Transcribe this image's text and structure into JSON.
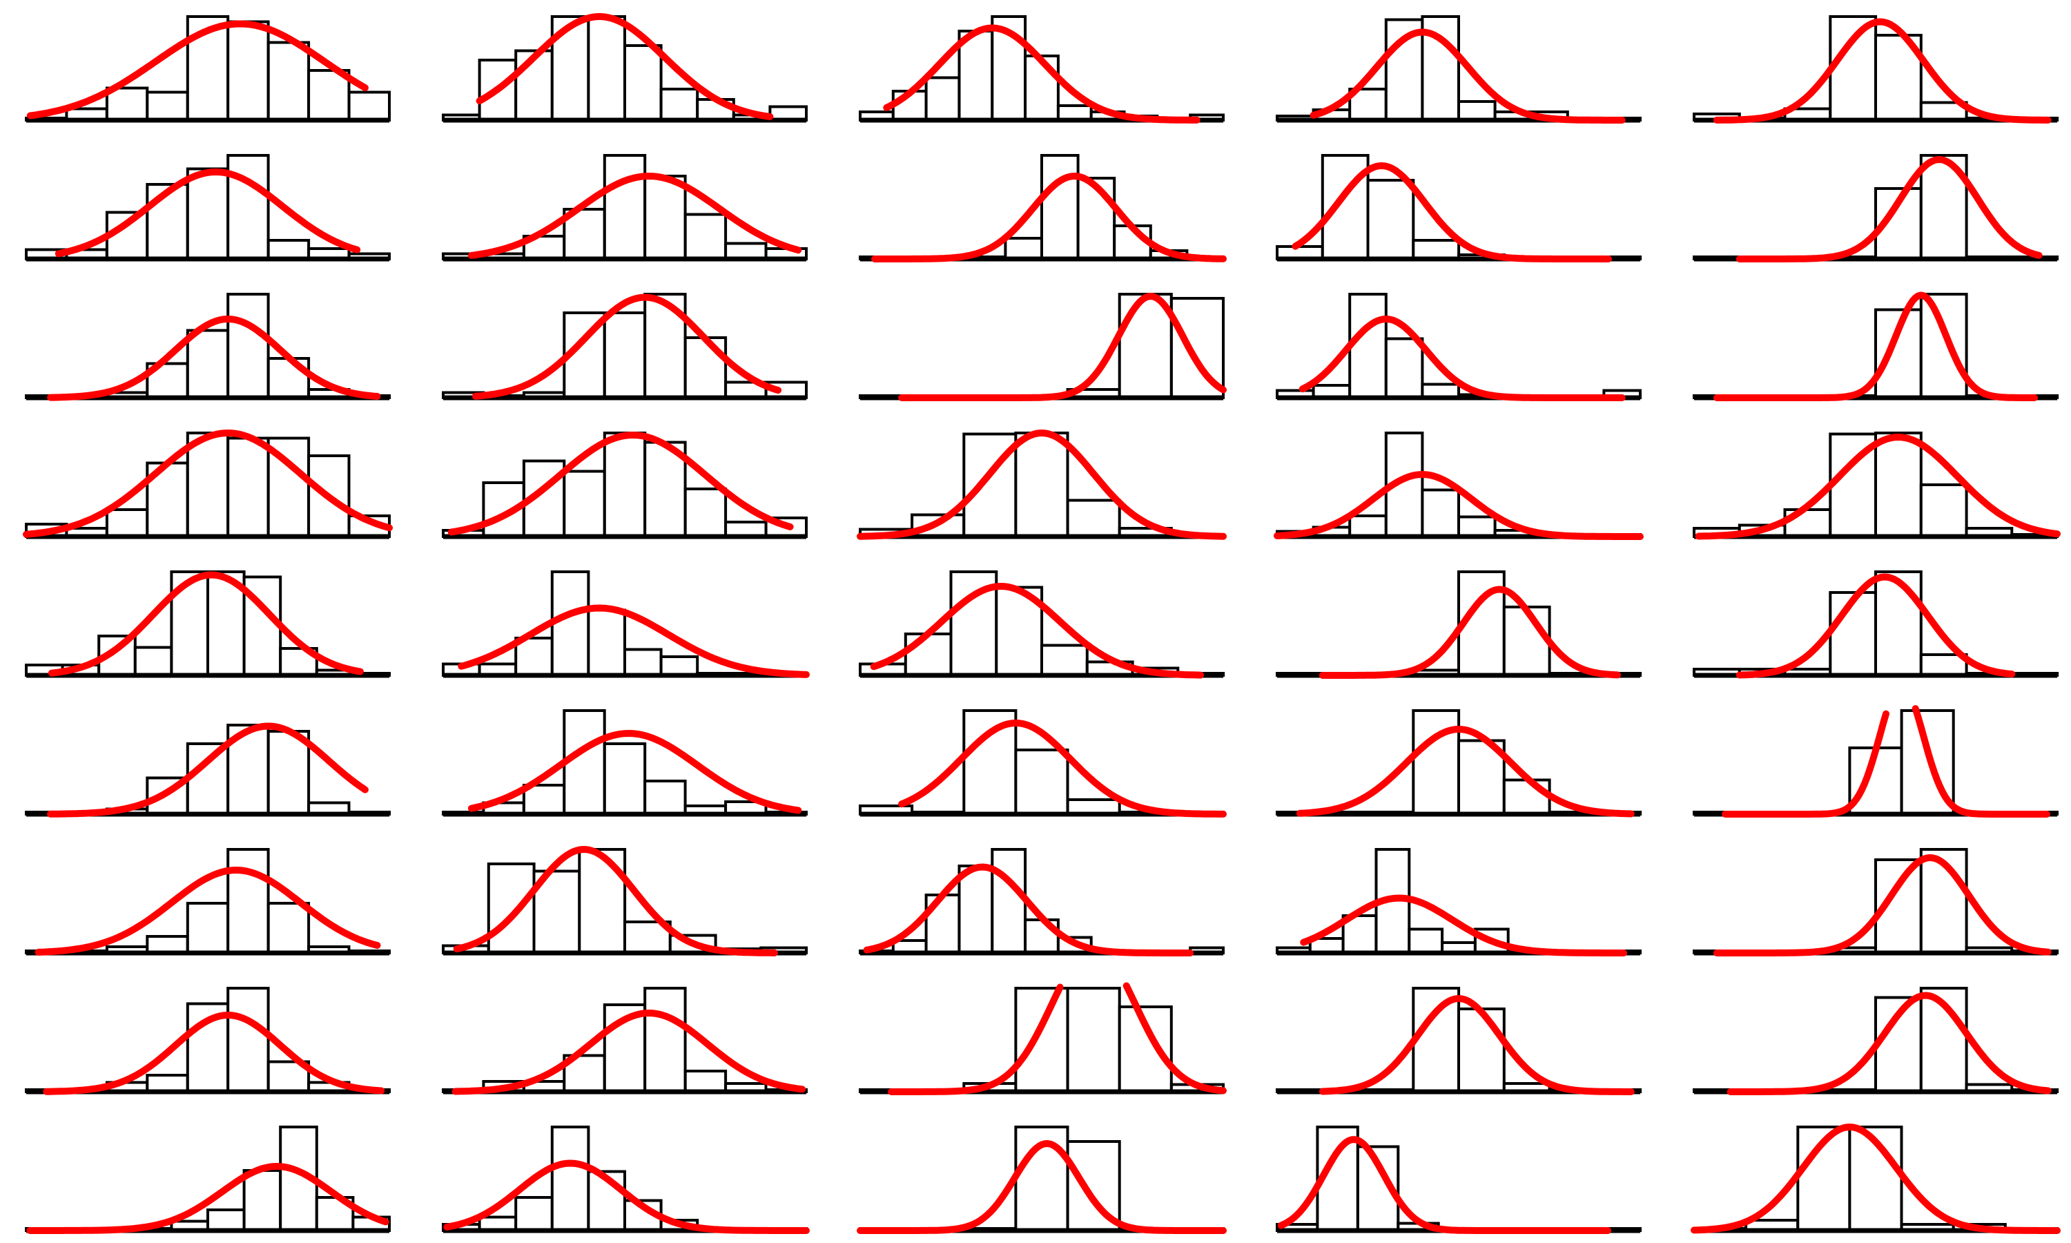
{
  "chart_data": {
    "type": "histogram-grid",
    "layout": {
      "rows": 9,
      "cols": 5
    },
    "colors": {
      "bar_fill": "#ffffff",
      "bar_edge": "#000000",
      "fit_curve": "#ff0000"
    },
    "grid": false,
    "axes_visible": false,
    "title": "",
    "panels": [
      {
        "name": "r1c1",
        "bins": 9,
        "ymax": 1.0,
        "counts": [
          0.02,
          0.11,
          0.31,
          0.27,
          1.0,
          0.95,
          0.75,
          0.48,
          0.27
        ],
        "fit": {
          "mean": 5.3,
          "sd": 2.1,
          "peak": 0.93
        },
        "fit_range": [
          0.1,
          8.4
        ]
      },
      {
        "name": "r1c2",
        "bins": 10,
        "ymax": 1.0,
        "counts": [
          0.05,
          0.58,
          0.67,
          1.0,
          1.0,
          0.72,
          0.3,
          0.2,
          0.05,
          0.13
        ],
        "fit": {
          "mean": 4.3,
          "sd": 1.8,
          "peak": 1.0
        },
        "fit_range": [
          1.0,
          9.0
        ]
      },
      {
        "name": "r1c3",
        "bins": 11,
        "ymax": 1.0,
        "counts": [
          0.08,
          0.28,
          0.41,
          0.86,
          1.0,
          0.62,
          0.14,
          0.08,
          0.04,
          0.02,
          0.05
        ],
        "fit": {
          "mean": 4.0,
          "sd": 1.6,
          "peak": 0.89
        },
        "fit_range": [
          0.8,
          10.2
        ]
      },
      {
        "name": "r1c4",
        "bins": 10,
        "ymax": 1.0,
        "counts": [
          0.04,
          0.1,
          0.3,
          0.97,
          1.0,
          0.18,
          0.08,
          0.08,
          0.02,
          0.02
        ],
        "fit": {
          "mean": 4.0,
          "sd": 1.25,
          "peak": 0.85
        },
        "fit_range": [
          1.0,
          9.5
        ]
      },
      {
        "name": "r1c5",
        "bins": 8,
        "ymax": 1.0,
        "counts": [
          0.06,
          0.02,
          0.11,
          1.0,
          0.82,
          0.17,
          0.02,
          0.02
        ],
        "fit": {
          "mean": 4.1,
          "sd": 0.95,
          "peak": 0.95
        },
        "fit_range": [
          0.5,
          7.8
        ]
      },
      {
        "name": "r2c1",
        "bins": 9,
        "ymax": 1.0,
        "counts": [
          0.09,
          0.09,
          0.45,
          0.72,
          0.87,
          1.0,
          0.18,
          0.1,
          0.05
        ],
        "fit": {
          "mean": 4.7,
          "sd": 1.65,
          "peak": 0.84
        },
        "fit_range": [
          0.8,
          8.2
        ]
      },
      {
        "name": "r2c2",
        "bins": 9,
        "ymax": 1.0,
        "counts": [
          0.05,
          0.05,
          0.22,
          0.48,
          1.0,
          0.8,
          0.43,
          0.15,
          0.1
        ],
        "fit": {
          "mean": 5.1,
          "sd": 1.75,
          "peak": 0.8
        },
        "fit_range": [
          0.7,
          8.8
        ]
      },
      {
        "name": "r2c3",
        "bins": 10,
        "ymax": 1.0,
        "counts": [
          0.02,
          0.02,
          0.02,
          0.02,
          0.2,
          1.0,
          0.78,
          0.32,
          0.08,
          0.02
        ],
        "fit": {
          "mean": 5.9,
          "sd": 1.15,
          "peak": 0.8
        },
        "fit_range": [
          0.4,
          10.0
        ]
      },
      {
        "name": "r2c4",
        "bins": 8,
        "ymax": 1.0,
        "counts": [
          0.12,
          1.0,
          0.76,
          0.18,
          0.04,
          0.02,
          0.02,
          0.02
        ],
        "fit": {
          "mean": 2.3,
          "sd": 0.95,
          "peak": 0.9
        },
        "fit_range": [
          0.4,
          7.3
        ]
      },
      {
        "name": "r2c5",
        "bins": 8,
        "ymax": 1.0,
        "counts": [
          0.02,
          0.02,
          0.02,
          0.02,
          0.68,
          1.0,
          0.02,
          0.02
        ],
        "fit": {
          "mean": 5.4,
          "sd": 0.85,
          "peak": 0.96
        },
        "fit_range": [
          1.0,
          7.6
        ]
      },
      {
        "name": "r3c1",
        "bins": 9,
        "ymax": 1.0,
        "counts": [
          0.02,
          0.02,
          0.05,
          0.33,
          0.65,
          1.0,
          0.38,
          0.08,
          0.02
        ],
        "fit": {
          "mean": 5.0,
          "sd": 1.3,
          "peak": 0.76
        },
        "fit_range": [
          0.6,
          8.7
        ]
      },
      {
        "name": "r3c2",
        "bins": 9,
        "ymax": 1.0,
        "counts": [
          0.05,
          0.02,
          0.05,
          0.82,
          0.82,
          1.0,
          0.58,
          0.15,
          0.15
        ],
        "fit": {
          "mean": 5.0,
          "sd": 1.45,
          "peak": 0.97
        },
        "fit_range": [
          0.8,
          8.3
        ]
      },
      {
        "name": "r3c3",
        "bins": 7,
        "ymax": 1.0,
        "counts": [
          0.02,
          0.02,
          0.02,
          0.02,
          0.08,
          1.0,
          0.96
        ],
        "fit": {
          "mean": 5.6,
          "sd": 0.62,
          "peak": 0.98
        },
        "fit_range": [
          0.8,
          7.0
        ]
      },
      {
        "name": "r3c4",
        "bins": 10,
        "ymax": 1.0,
        "counts": [
          0.07,
          0.12,
          1.0,
          0.57,
          0.13,
          0.03,
          0.02,
          0.02,
          0.02,
          0.07
        ],
        "fit": {
          "mean": 3.0,
          "sd": 1.1,
          "peak": 0.76
        },
        "fit_range": [
          0.7,
          9.5
        ]
      },
      {
        "name": "r3c5",
        "bins": 8,
        "ymax": 1.0,
        "counts": [
          0.02,
          0.02,
          0.02,
          0.02,
          0.85,
          1.0,
          0.02,
          0.02
        ],
        "fit": {
          "mean": 5.0,
          "sd": 0.55,
          "peak": 0.99
        },
        "fit_range": [
          0.5,
          7.5
        ]
      },
      {
        "name": "r4c1",
        "bins": 9,
        "ymax": 1.0,
        "counts": [
          0.12,
          0.08,
          0.26,
          0.71,
          1.0,
          0.95,
          0.95,
          0.78,
          0.2
        ],
        "fit": {
          "mean": 5.0,
          "sd": 1.8,
          "peak": 1.0
        },
        "fit_range": [
          0.0,
          9.0
        ]
      },
      {
        "name": "r4c2",
        "bins": 9,
        "ymax": 1.0,
        "counts": [
          0.06,
          0.52,
          0.73,
          0.63,
          1.0,
          0.91,
          0.46,
          0.14,
          0.18
        ],
        "fit": {
          "mean": 4.7,
          "sd": 1.8,
          "peak": 0.98
        },
        "fit_range": [
          0.2,
          8.6
        ]
      },
      {
        "name": "r4c3",
        "bins": 7,
        "ymax": 1.0,
        "counts": [
          0.07,
          0.21,
          0.99,
          1.0,
          0.35,
          0.08,
          0.02
        ],
        "fit": {
          "mean": 3.5,
          "sd": 1.0,
          "peak": 1.0
        },
        "fit_range": [
          0.0,
          7.0
        ]
      },
      {
        "name": "r4c4",
        "bins": 10,
        "ymax": 1.0,
        "counts": [
          0.05,
          0.09,
          0.2,
          1.0,
          0.45,
          0.19,
          0.06,
          0.02,
          0.02,
          0.02
        ],
        "fit": {
          "mean": 4.0,
          "sd": 1.35,
          "peak": 0.6
        },
        "fit_range": [
          0.0,
          10.0
        ]
      },
      {
        "name": "r4c5",
        "bins": 8,
        "ymax": 1.0,
        "counts": [
          0.08,
          0.11,
          0.26,
          0.99,
          1.0,
          0.5,
          0.08,
          0.02
        ],
        "fit": {
          "mean": 4.5,
          "sd": 1.3,
          "peak": 0.96
        },
        "fit_range": [
          0.1,
          8.0
        ]
      },
      {
        "name": "r5c1",
        "bins": 10,
        "ymax": 1.0,
        "counts": [
          0.1,
          0.1,
          0.38,
          0.27,
          1.0,
          1.0,
          0.95,
          0.26,
          0.05,
          0.02
        ],
        "fit": {
          "mean": 5.1,
          "sd": 1.6,
          "peak": 0.97
        },
        "fit_range": [
          0.7,
          9.2
        ]
      },
      {
        "name": "r5c2",
        "bins": 10,
        "ymax": 1.0,
        "counts": [
          0.11,
          0.11,
          0.36,
          1.0,
          0.63,
          0.25,
          0.18,
          0.02,
          0.02,
          0.02
        ],
        "fit": {
          "mean": 4.3,
          "sd": 1.9,
          "peak": 0.65
        },
        "fit_range": [
          0.5,
          10.0
        ]
      },
      {
        "name": "r5c3",
        "bins": 8,
        "ymax": 1.0,
        "counts": [
          0.11,
          0.4,
          1.0,
          0.85,
          0.29,
          0.13,
          0.07,
          0.02
        ],
        "fit": {
          "mean": 3.1,
          "sd": 1.3,
          "peak": 0.86
        },
        "fit_range": [
          0.3,
          7.5
        ]
      },
      {
        "name": "r5c4",
        "bins": 8,
        "ymax": 1.0,
        "counts": [
          0.02,
          0.02,
          0.02,
          0.05,
          1.0,
          0.66,
          0.02,
          0.02
        ],
        "fit": {
          "mean": 4.9,
          "sd": 0.8,
          "peak": 0.83
        },
        "fit_range": [
          1.0,
          7.5
        ]
      },
      {
        "name": "r5c5",
        "bins": 8,
        "ymax": 1.0,
        "counts": [
          0.06,
          0.06,
          0.06,
          0.8,
          1.0,
          0.2,
          0.02,
          0.02
        ],
        "fit": {
          "mean": 4.2,
          "sd": 0.95,
          "peak": 0.95
        },
        "fit_range": [
          1.0,
          7.0
        ]
      },
      {
        "name": "r6c1",
        "bins": 9,
        "ymax": 1.0,
        "counts": [
          0.02,
          0.02,
          0.05,
          0.35,
          0.68,
          0.86,
          0.8,
          0.11,
          0.02
        ],
        "fit": {
          "mean": 6.0,
          "sd": 1.5,
          "peak": 0.85
        },
        "fit_range": [
          0.6,
          8.4
        ]
      },
      {
        "name": "r6c2",
        "bins": 9,
        "ymax": 1.0,
        "counts": [
          0.02,
          0.11,
          0.28,
          1.0,
          0.68,
          0.32,
          0.08,
          0.12,
          0.02
        ],
        "fit": {
          "mean": 4.6,
          "sd": 1.7,
          "peak": 0.78
        },
        "fit_range": [
          0.7,
          8.8
        ]
      },
      {
        "name": "r6c3",
        "bins": 7,
        "ymax": 1.0,
        "counts": [
          0.08,
          0.02,
          1.0,
          0.62,
          0.14,
          0.02,
          0.02
        ],
        "fit": {
          "mean": 3.0,
          "sd": 1.05,
          "peak": 0.88
        },
        "fit_range": [
          0.8,
          7.0
        ]
      },
      {
        "name": "r6c4",
        "bins": 8,
        "ymax": 1.0,
        "counts": [
          0.02,
          0.02,
          0.02,
          1.0,
          0.71,
          0.33,
          0.02,
          0.02
        ],
        "fit": {
          "mean": 4.0,
          "sd": 1.15,
          "peak": 0.82
        },
        "fit_range": [
          0.5,
          7.8
        ]
      },
      {
        "name": "r6c5",
        "bins": 7,
        "ymax": 1.0,
        "counts": [
          0.02,
          0.02,
          0.02,
          0.64,
          1.0,
          0.02,
          0.02
        ],
        "fit": {
          "mean": 4.0,
          "sd": 0.42,
          "peak": 1.25
        },
        "fit_range": [
          0.6,
          6.8
        ]
      },
      {
        "name": "r7c1",
        "bins": 9,
        "ymax": 1.0,
        "counts": [
          0.02,
          0.02,
          0.06,
          0.16,
          0.48,
          1.0,
          0.48,
          0.06,
          0.02
        ],
        "fit": {
          "mean": 5.2,
          "sd": 1.6,
          "peak": 0.8
        },
        "fit_range": [
          0.3,
          8.7
        ]
      },
      {
        "name": "r7c2",
        "bins": 8,
        "ymax": 1.0,
        "counts": [
          0.07,
          0.86,
          0.79,
          1.0,
          0.3,
          0.17,
          0.04,
          0.05
        ],
        "fit": {
          "mean": 3.1,
          "sd": 1.1,
          "peak": 1.0
        },
        "fit_range": [
          0.3,
          7.3
        ]
      },
      {
        "name": "r7c3",
        "bins": 11,
        "ymax": 1.0,
        "counts": [
          0.02,
          0.12,
          0.56,
          0.84,
          1.0,
          0.32,
          0.15,
          0.02,
          0.02,
          0.02,
          0.05
        ],
        "fit": {
          "mean": 3.7,
          "sd": 1.35,
          "peak": 0.83
        },
        "fit_range": [
          0.2,
          10.0
        ]
      },
      {
        "name": "r7c4",
        "bins": 11,
        "ymax": 1.0,
        "counts": [
          0.05,
          0.14,
          0.36,
          1.0,
          0.23,
          0.1,
          0.23,
          0.03,
          0.02,
          0.02,
          0.02
        ],
        "fit": {
          "mean": 3.7,
          "sd": 1.6,
          "peak": 0.53
        },
        "fit_range": [
          0.8,
          10.5
        ]
      },
      {
        "name": "r7c5",
        "bins": 8,
        "ymax": 1.0,
        "counts": [
          0.02,
          0.02,
          0.02,
          0.05,
          0.9,
          1.0,
          0.05,
          0.02
        ],
        "fit": {
          "mean": 5.2,
          "sd": 0.85,
          "peak": 0.92
        },
        "fit_range": [
          0.5,
          7.8
        ]
      },
      {
        "name": "r8c1",
        "bins": 9,
        "ymax": 1.0,
        "counts": [
          0.02,
          0.02,
          0.09,
          0.16,
          0.85,
          1.0,
          0.29,
          0.09,
          0.02
        ],
        "fit": {
          "mean": 5.0,
          "sd": 1.3,
          "peak": 0.74
        },
        "fit_range": [
          0.5,
          8.8
        ]
      },
      {
        "name": "r8c2",
        "bins": 9,
        "ymax": 1.0,
        "counts": [
          0.02,
          0.1,
          0.1,
          0.35,
          0.84,
          1.0,
          0.2,
          0.08,
          0.02
        ],
        "fit": {
          "mean": 5.1,
          "sd": 1.45,
          "peak": 0.76
        },
        "fit_range": [
          0.3,
          8.9
        ]
      },
      {
        "name": "r8c3",
        "bins": 7,
        "ymax": 1.0,
        "counts": [
          0.02,
          0.02,
          0.08,
          1.0,
          1.0,
          0.82,
          0.07
        ],
        "fit": {
          "mean": 4.5,
          "sd": 0.8,
          "peak": 1.4
        },
        "fit_range": [
          0.6,
          7.0
        ]
      },
      {
        "name": "r8c4",
        "bins": 8,
        "ymax": 1.0,
        "counts": [
          0.02,
          0.02,
          0.02,
          1.0,
          0.8,
          0.08,
          0.02,
          0.02
        ],
        "fit": {
          "mean": 4.0,
          "sd": 0.9,
          "peak": 0.9
        },
        "fit_range": [
          1.0,
          7.8
        ]
      },
      {
        "name": "r8c5",
        "bins": 8,
        "ymax": 1.0,
        "counts": [
          0.02,
          0.02,
          0.02,
          0.02,
          0.91,
          1.0,
          0.07,
          0.02
        ],
        "fit": {
          "mean": 5.1,
          "sd": 0.9,
          "peak": 0.93
        },
        "fit_range": [
          0.8,
          7.8
        ]
      },
      {
        "name": "r9c1",
        "bins": 10,
        "ymax": 1.0,
        "counts": [
          0.02,
          0.02,
          0.02,
          0.02,
          0.09,
          0.2,
          0.58,
          1.0,
          0.32,
          0.13
        ],
        "fit": {
          "mean": 6.9,
          "sd": 1.5,
          "peak": 0.62
        },
        "fit_range": [
          0.1,
          9.9
        ]
      },
      {
        "name": "r9c2",
        "bins": 10,
        "ymax": 1.0,
        "counts": [
          0.06,
          0.13,
          0.32,
          1.0,
          0.57,
          0.29,
          0.1,
          0.02,
          0.02,
          0.02
        ],
        "fit": {
          "mean": 3.5,
          "sd": 1.4,
          "peak": 0.65
        },
        "fit_range": [
          0.1,
          10.0
        ]
      },
      {
        "name": "r9c3",
        "bins": 7,
        "ymax": 1.0,
        "counts": [
          0.02,
          0.02,
          0.02,
          1.0,
          0.86,
          0.02,
          0.02
        ],
        "fit": {
          "mean": 3.6,
          "sd": 0.62,
          "peak": 0.84
        },
        "fit_range": [
          0.0,
          7.0
        ]
      },
      {
        "name": "r9c4",
        "bins": 9,
        "ymax": 1.0,
        "counts": [
          0.06,
          1.0,
          0.81,
          0.07,
          0.02,
          0.02,
          0.02,
          0.02,
          0.02
        ],
        "fit": {
          "mean": 1.9,
          "sd": 0.75,
          "peak": 0.88
        },
        "fit_range": [
          0.1,
          8.2
        ]
      },
      {
        "name": "r9c5",
        "bins": 7,
        "ymax": 1.0,
        "counts": [
          0.02,
          0.1,
          1.0,
          1.0,
          0.06,
          0.06,
          0.02
        ],
        "fit": {
          "mean": 3.0,
          "sd": 0.9,
          "peak": 1.0
        },
        "fit_range": [
          0.0,
          7.0
        ]
      }
    ]
  }
}
